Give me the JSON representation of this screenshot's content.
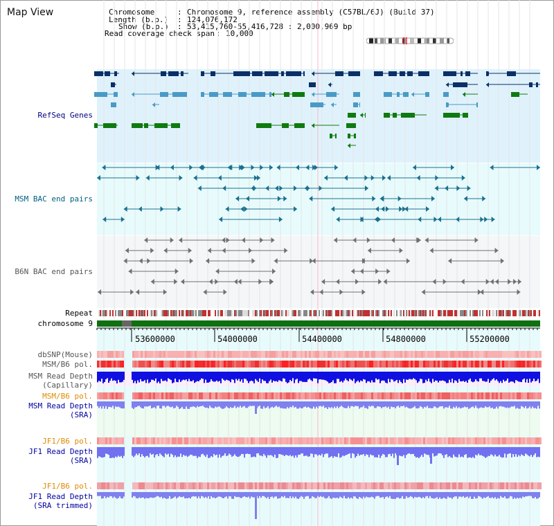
{
  "header": {
    "title": "Map View",
    "chromosome_key": "Chromosome",
    "chromosome_value": "Chromosome 9, reference assembly (C57BL/6J) (Build 37)",
    "length_key": "Length (b.p.)",
    "length_value": "124,076,172",
    "show_key": "Show (b.p.)",
    "show_value": "53,415,760-55,416,728 : 2,000,969 bp",
    "coverage_key": "Read coverage check span",
    "coverage_value": "10,000"
  },
  "tracks": {
    "refseq": "RefSeq Genes",
    "msm_bac": "MSM BAC end pairs",
    "b6n_bac": "B6N BAC end pairs",
    "repeat": "Repeat",
    "chromosome": "chromosome 9",
    "dbsnp": "dbSNP(Mouse)",
    "msm_b6_pol": "MSM/B6 pol.",
    "msm_depth_cap_1": "MSM Read Depth",
    "msm_depth_cap_2": "(Capillary)",
    "msm_b6_pol_2": "MSM/B6 pol.",
    "msm_depth_sra_1": "MSM Read Depth",
    "msm_depth_sra_2": "(SRA)",
    "jf1_b6_pol": "JF1/B6 pol.",
    "jf1_depth_sra_1": "JF1 Read Depth",
    "jf1_depth_sra_2": "(SRA)",
    "jf1_b6_pol_2": "JF1/B6 pol.",
    "jf1_depth_trim_1": "JF1 Read Depth",
    "jf1_depth_trim_2": "(SRA trimmed)"
  },
  "axis": {
    "ticks": [
      "53600000",
      "54000000",
      "54400000",
      "54800000",
      "55200000"
    ]
  },
  "colors": {
    "refseq_label": "#000080",
    "msm_label": "#006080",
    "b6n_label": "#555555",
    "orange_label": "#e08a00",
    "blue_label": "#0000a0",
    "gene_navy": "#0b2f66",
    "gene_blue": "#4a9ac6",
    "gene_green": "#0f7a10",
    "chrom_green": "#0e7010",
    "bac_msm": "#1a7090",
    "bac_b6n": "#707070",
    "depth_blue": "#1818e0",
    "depth_light": "#7070f0",
    "pol_red": "#ee3030",
    "pol_pink": "#f8a0a0"
  }
}
